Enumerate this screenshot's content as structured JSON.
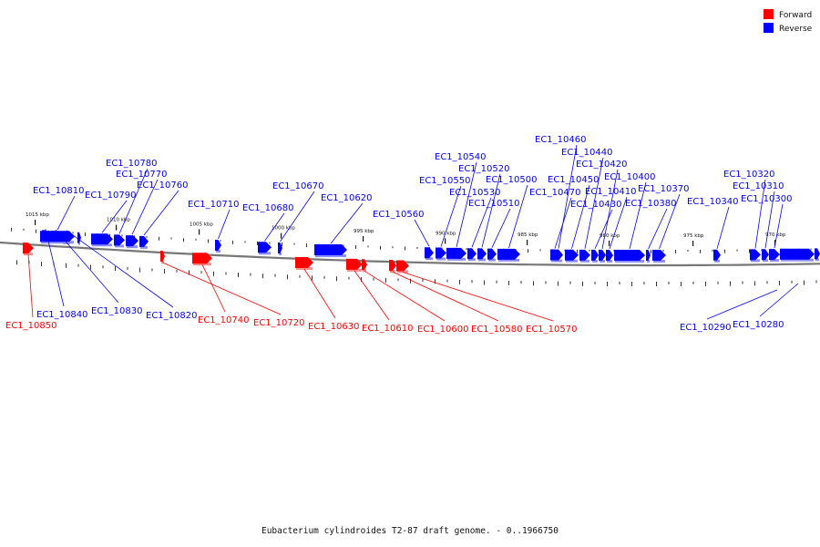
{
  "legend": [
    {
      "label": "Forward",
      "color": "#ff0000"
    },
    {
      "label": "Reverse",
      "color": "#0000ff"
    }
  ],
  "caption": "Eubacterium cylindroides T2-87 draft genome. - 0..1966750",
  "colors": {
    "forward": "#ff0000",
    "reverse": "#0000ff",
    "backbone": "#777777"
  },
  "scale": {
    "unit": "kbp",
    "ticks": [
      {
        "label": "1015 kbp",
        "pos": 1015
      },
      {
        "label": "1010 kbp",
        "pos": 1010
      },
      {
        "label": "1005 kbp",
        "pos": 1005
      },
      {
        "label": "1000 kbp",
        "pos": 1000
      },
      {
        "label": "995 kbp",
        "pos": 995
      },
      {
        "label": "990 kbp",
        "pos": 990
      },
      {
        "label": "985 kbp",
        "pos": 985
      },
      {
        "label": "980 kbp",
        "pos": 980
      },
      {
        "label": "975 kbp",
        "pos": 975
      },
      {
        "label": "970 kbp",
        "pos": 970
      }
    ]
  },
  "genes": [
    {
      "id": "EC1_10850",
      "strand": "forward"
    },
    {
      "id": "EC1_10840",
      "strand": "reverse"
    },
    {
      "id": "EC1_10830",
      "strand": "reverse"
    },
    {
      "id": "EC1_10820",
      "strand": "reverse"
    },
    {
      "id": "EC1_10810",
      "strand": "reverse"
    },
    {
      "id": "EC1_10790",
      "strand": "reverse"
    },
    {
      "id": "EC1_10780",
      "strand": "reverse"
    },
    {
      "id": "EC1_10770",
      "strand": "reverse"
    },
    {
      "id": "EC1_10760",
      "strand": "reverse"
    },
    {
      "id": "EC1_10740",
      "strand": "forward"
    },
    {
      "id": "EC1_10720",
      "strand": "forward"
    },
    {
      "id": "EC1_10710",
      "strand": "reverse"
    },
    {
      "id": "EC1_10680",
      "strand": "reverse"
    },
    {
      "id": "EC1_10670",
      "strand": "reverse"
    },
    {
      "id": "EC1_10630",
      "strand": "forward"
    },
    {
      "id": "EC1_10620",
      "strand": "reverse"
    },
    {
      "id": "EC1_10610",
      "strand": "forward"
    },
    {
      "id": "EC1_10600",
      "strand": "forward"
    },
    {
      "id": "EC1_10580",
      "strand": "forward"
    },
    {
      "id": "EC1_10570",
      "strand": "forward"
    },
    {
      "id": "EC1_10560",
      "strand": "reverse"
    },
    {
      "id": "EC1_10550",
      "strand": "reverse"
    },
    {
      "id": "EC1_10540",
      "strand": "reverse"
    },
    {
      "id": "EC1_10530",
      "strand": "reverse"
    },
    {
      "id": "EC1_10520",
      "strand": "reverse"
    },
    {
      "id": "EC1_10510",
      "strand": "reverse"
    },
    {
      "id": "EC1_10500",
      "strand": "reverse"
    },
    {
      "id": "EC1_10470",
      "strand": "reverse"
    },
    {
      "id": "EC1_10460",
      "strand": "reverse"
    },
    {
      "id": "EC1_10450",
      "strand": "reverse"
    },
    {
      "id": "EC1_10440",
      "strand": "reverse"
    },
    {
      "id": "EC1_10430",
      "strand": "reverse"
    },
    {
      "id": "EC1_10420",
      "strand": "reverse"
    },
    {
      "id": "EC1_10410",
      "strand": "reverse"
    },
    {
      "id": "EC1_10400",
      "strand": "reverse"
    },
    {
      "id": "EC1_10380",
      "strand": "reverse"
    },
    {
      "id": "EC1_10370",
      "strand": "reverse"
    },
    {
      "id": "EC1_10340",
      "strand": "reverse"
    },
    {
      "id": "EC1_10320",
      "strand": "reverse"
    },
    {
      "id": "EC1_10310",
      "strand": "reverse"
    },
    {
      "id": "EC1_10300",
      "strand": "reverse"
    },
    {
      "id": "EC1_10290",
      "strand": "reverse"
    },
    {
      "id": "EC1_10280",
      "strand": "reverse"
    }
  ]
}
